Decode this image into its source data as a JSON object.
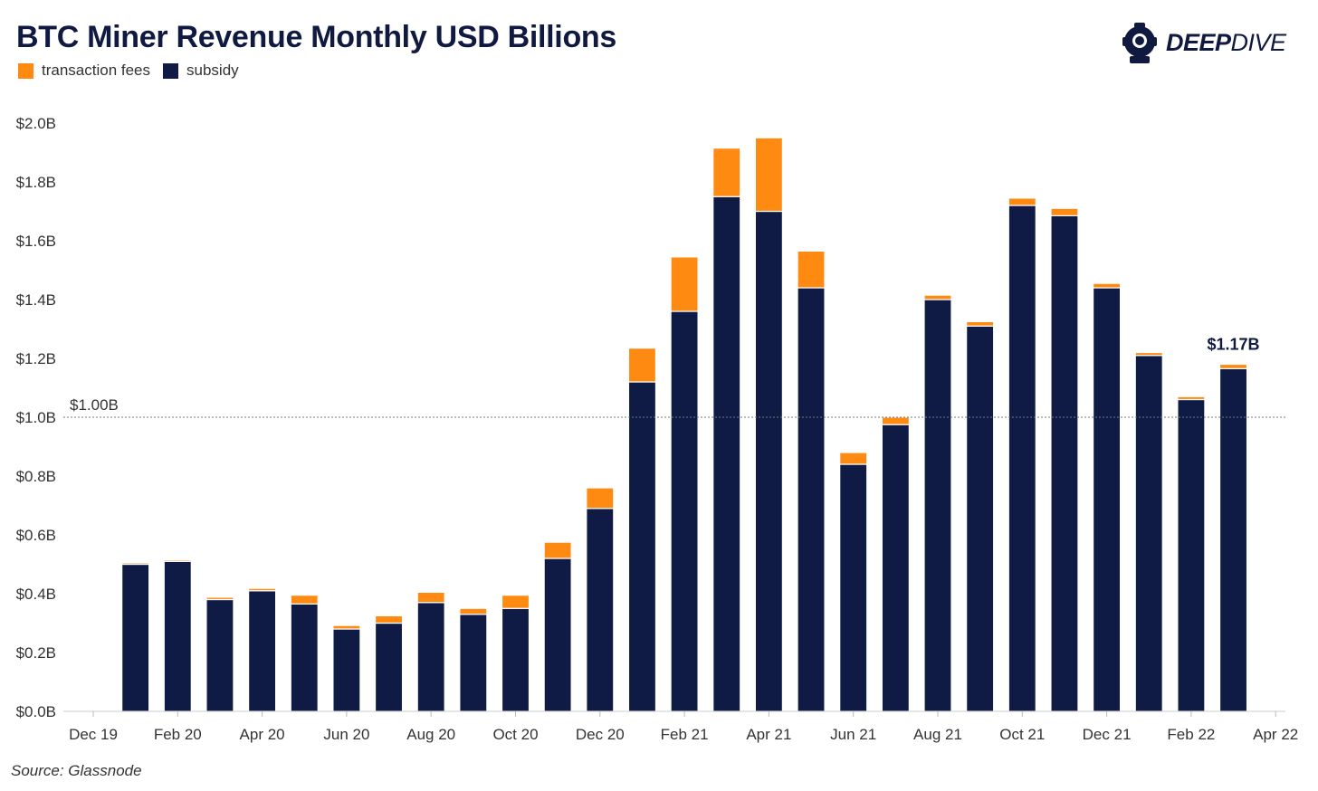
{
  "colors": {
    "fees": "#ff8a12",
    "subsidy": "#0f1b45",
    "title": "#10193f",
    "refline": "#777777"
  },
  "logo": {
    "bold": "DEEP",
    "light": "DIVE",
    "icon": "diver-helmet-icon"
  },
  "source": "Source: Glassnode",
  "chart_data": {
    "type": "bar",
    "stacked": true,
    "title": "BTC Miner Revenue Monthly USD Billions",
    "legend": [
      {
        "name": "transaction fees",
        "key": "fees"
      },
      {
        "name": "subsidy",
        "key": "subsidy"
      }
    ],
    "legend_position": "top-left",
    "ylim": [
      0,
      2.0
    ],
    "yticks": [
      {
        "value": 0.0,
        "label": "$0.0B"
      },
      {
        "value": 0.2,
        "label": "$0.2B"
      },
      {
        "value": 0.4,
        "label": "$0.4B"
      },
      {
        "value": 0.6,
        "label": "$0.6B"
      },
      {
        "value": 0.8,
        "label": "$0.8B"
      },
      {
        "value": 1.0,
        "label": "$1.0B"
      },
      {
        "value": 1.2,
        "label": "$1.2B"
      },
      {
        "value": 1.4,
        "label": "$1.4B"
      },
      {
        "value": 1.6,
        "label": "$1.6B"
      },
      {
        "value": 1.8,
        "label": "$1.8B"
      },
      {
        "value": 2.0,
        "label": "$2.0B"
      }
    ],
    "xticks": [
      "Dec 19",
      "Feb 20",
      "Apr 20",
      "Jun 20",
      "Aug 20",
      "Oct 20",
      "Dec 20",
      "Feb 21",
      "Apr 21",
      "Jun 21",
      "Aug 21",
      "Oct 21",
      "Dec 21",
      "Feb 22",
      "Apr 22"
    ],
    "categories": [
      "Jan 20",
      "Feb 20",
      "Mar 20",
      "Apr 20",
      "May 20",
      "Jun 20",
      "Jul 20",
      "Aug 20",
      "Sep 20",
      "Oct 20",
      "Nov 20",
      "Dec 20",
      "Jan 21",
      "Feb 21",
      "Mar 21",
      "Apr 21",
      "May 21",
      "Jun 21",
      "Jul 21",
      "Aug 21",
      "Sep 21",
      "Oct 21",
      "Nov 21",
      "Dec 21",
      "Jan 22",
      "Feb 22",
      "Mar 22"
    ],
    "series": [
      {
        "name": "subsidy",
        "values": [
          0.5,
          0.51,
          0.38,
          0.41,
          0.365,
          0.28,
          0.3,
          0.37,
          0.33,
          0.35,
          0.52,
          0.69,
          1.12,
          1.36,
          1.75,
          1.7,
          1.44,
          0.84,
          0.975,
          1.4,
          1.31,
          1.72,
          1.685,
          1.44,
          1.21,
          1.06,
          1.165
        ]
      },
      {
        "name": "transaction fees",
        "values": [
          0.005,
          0.005,
          0.008,
          0.008,
          0.03,
          0.012,
          0.025,
          0.035,
          0.02,
          0.045,
          0.055,
          0.07,
          0.115,
          0.185,
          0.165,
          0.25,
          0.125,
          0.04,
          0.025,
          0.015,
          0.015,
          0.025,
          0.025,
          0.015,
          0.01,
          0.01,
          0.015
        ]
      }
    ],
    "reference_line": {
      "value": 1.0,
      "label": "$1.00B"
    },
    "last_label": "$1.17B"
  }
}
